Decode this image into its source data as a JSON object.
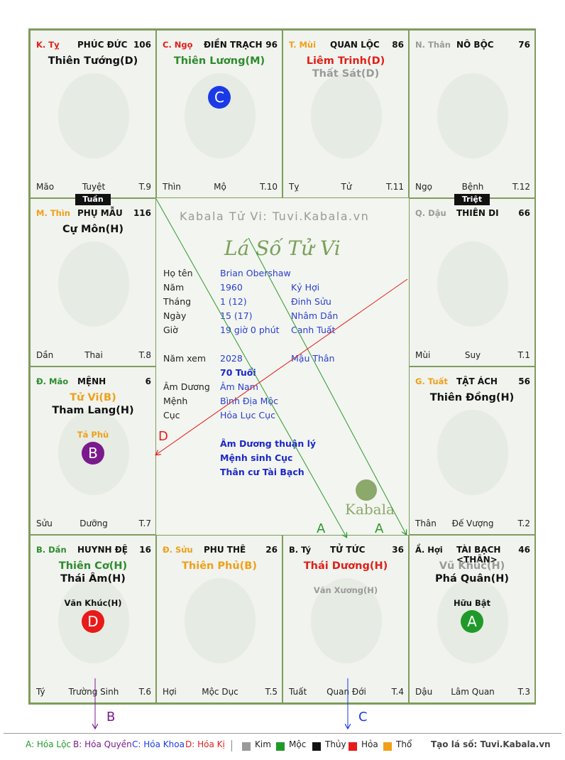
{
  "palaces": [
    {
      "can": "K. Tỵ",
      "can_color": "#e0201a",
      "name": "PHÚC ĐỨC",
      "num": "106",
      "stars": [
        {
          "text": "Thiên Tướng(D)",
          "color": "#111111"
        }
      ],
      "aux": "",
      "circle": "",
      "foot_left": "Mão",
      "foot_center": "Tuyệt",
      "foot_right": "T.9"
    },
    {
      "can": "C. Ngọ",
      "can_color": "#e0201a",
      "name": "ĐIỀN TRẠCH",
      "num": "96",
      "stars": [
        {
          "text": "Thiên Lương(M)",
          "color": "#2c8c2c"
        }
      ],
      "aux": "",
      "circle": "C",
      "foot_left": "Thìn",
      "foot_center": "Mộ",
      "foot_right": "T.10"
    },
    {
      "can": "T. Mùi",
      "can_color": "#f0a018",
      "name": "QUAN LỘC",
      "num": "86",
      "stars": [
        {
          "text": "Liêm Trinh(D)",
          "color": "#e0201a"
        },
        {
          "text": "Thất Sát(D)",
          "color": "#9a9a9a"
        }
      ],
      "aux": "",
      "circle": "",
      "foot_left": "Tỵ",
      "foot_center": "Tử",
      "foot_right": "T.11"
    },
    {
      "can": "N. Thân",
      "can_color": "#9a9a9a",
      "name": "NÔ BỘC",
      "num": "76",
      "stars": [],
      "aux": "",
      "circle": "",
      "foot_left": "Ngọ",
      "foot_center": "Bệnh",
      "foot_right": "T.12"
    },
    {
      "can": "M. Thìn",
      "can_color": "#f0a018",
      "name": "PHỤ MẪU",
      "num": "116",
      "stars": [
        {
          "text": "Cự Môn(H)",
          "color": "#111111"
        }
      ],
      "aux": "",
      "circle": "",
      "foot_left": "Dần",
      "foot_center": "Thai",
      "foot_right": "T.8"
    },
    {
      "can": "Q. Dậu",
      "can_color": "#9a9a9a",
      "name": "THIÊN DI",
      "num": "66",
      "stars": [],
      "aux": "",
      "circle": "",
      "foot_left": "Mùi",
      "foot_center": "Suy",
      "foot_right": "T.1"
    },
    {
      "can": "Đ. Mão",
      "can_color": "#2c8c2c",
      "name": "MỆNH",
      "num": "6",
      "stars": [
        {
          "text": "Tử Vi(B)",
          "color": "#f0a018"
        },
        {
          "text": "Tham Lang(H)",
          "color": "#111111"
        }
      ],
      "aux": "Tả Phù",
      "aux_color": "#f0a018",
      "circle": "B",
      "foot_left": "Sửu",
      "foot_center": "Dưỡng",
      "foot_right": "T.7"
    },
    {
      "can": "G. Tuất",
      "can_color": "#f0a018",
      "name": "TẬT ÁCH",
      "num": "56",
      "stars": [
        {
          "text": "Thiên Đồng(H)",
          "color": "#111111"
        }
      ],
      "aux": "",
      "circle": "",
      "foot_left": "Thân",
      "foot_center": "Đế Vượng",
      "foot_right": "T.2"
    },
    {
      "can": "B. Dần",
      "can_color": "#2c8c2c",
      "name": "HUYNH ĐỆ",
      "num": "16",
      "stars": [
        {
          "text": "Thiên Cơ(H)",
          "color": "#2c8c2c"
        },
        {
          "text": "Thái Âm(H)",
          "color": "#111111"
        }
      ],
      "aux": "Văn Khúc(H)",
      "aux_color": "#111111",
      "circle": "D",
      "foot_left": "Tý",
      "foot_center": "Trường Sinh",
      "foot_right": "T.6"
    },
    {
      "can": "Đ. Sửu",
      "can_color": "#f0a018",
      "name": "PHU THÊ",
      "num": "26",
      "stars": [
        {
          "text": "Thiên Phủ(B)",
          "color": "#f0a018"
        }
      ],
      "aux": "",
      "circle": "",
      "foot_left": "Hợi",
      "foot_center": "Mộc Dục",
      "foot_right": "T.5"
    },
    {
      "can": "B. Tý",
      "can_color": "#111111",
      "name": "TỬ TỨC",
      "num": "36",
      "stars": [
        {
          "text": "Thái Dương(H)",
          "color": "#e0201a"
        }
      ],
      "aux": "Văn Xương(H)",
      "aux_color": "#9a9a9a",
      "circle": "",
      "foot_left": "Tuất",
      "foot_center": "Quan Đới",
      "foot_right": "T.4"
    },
    {
      "can": "Ầ. Hợi",
      "can_color": "#111111",
      "name": "TÀI BẠCH <THÂN>",
      "num": "46",
      "stars": [
        {
          "text": "Vũ Khúc(H)",
          "color": "#9a9a9a"
        },
        {
          "text": "Phá Quân(H)",
          "color": "#111111"
        }
      ],
      "aux": "Hữu Bật",
      "aux_color": "#111111",
      "circle": "A",
      "foot_left": "Dậu",
      "foot_center": "Lâm Quan",
      "foot_right": "T.3"
    }
  ],
  "circle_colors": {
    "A": "#1f9a2a",
    "B": "#7a1a8c",
    "C": "#1a3ae8",
    "D": "#e81a1a"
  },
  "tags": {
    "tuan": "Tuần",
    "triet": "Triệt"
  },
  "center": {
    "watermark": "Kabala Tử Vi: Tuvi.Kabala.vn",
    "brand": "Lá Số Tử Vi",
    "logo_text": "Kabala",
    "rows": [
      {
        "label": "Họ tên",
        "value": "Brian Obershaw",
        "extra": ""
      },
      {
        "label": "Năm",
        "value": "1960",
        "extra": "Kỷ Hợi"
      },
      {
        "label": "Tháng",
        "value": "1  (12)",
        "extra": "Đinh Sửu"
      },
      {
        "label": "Ngày",
        "value": "15  (17)",
        "extra": "Nhâm Dần"
      },
      {
        "label": "Giờ",
        "value": "19 giờ 0 phút",
        "extra": "Canh Tuất"
      }
    ],
    "nam_xem": {
      "label": "Năm xem",
      "value": "2028",
      "extra": "Mậu Thân"
    },
    "age": "70 Tuổi",
    "rows2": [
      {
        "label": "Âm Dương",
        "value": "Âm Nam"
      },
      {
        "label": "Mệnh",
        "value": "Bình Địa Mộc"
      },
      {
        "label": "Cục",
        "value": "Hỏa Lục Cục"
      }
    ],
    "notes": [
      "Âm Dương thuận lý",
      "Mệnh sinh Cục",
      "Thân cư Tài Bạch"
    ]
  },
  "arrow_labels": {
    "a1": "A",
    "a2": "A",
    "b": "B",
    "c": "C",
    "d": "D"
  },
  "legend": {
    "a": "A: Hóa Lộc",
    "b": "B: Hóa Quyền",
    "c": "C: Hóa Khoa",
    "d": "D: Hóa Kị",
    "elements": [
      {
        "name": "Kim",
        "color": "#999999"
      },
      {
        "name": "Mộc",
        "color": "#1f9a2a"
      },
      {
        "name": "Thủy",
        "color": "#111111"
      },
      {
        "name": "Hỏa",
        "color": "#e81a1a"
      },
      {
        "name": "Thổ",
        "color": "#f0a018"
      }
    ],
    "credit": "Tạo lá số: Tuvi.Kabala.vn"
  }
}
